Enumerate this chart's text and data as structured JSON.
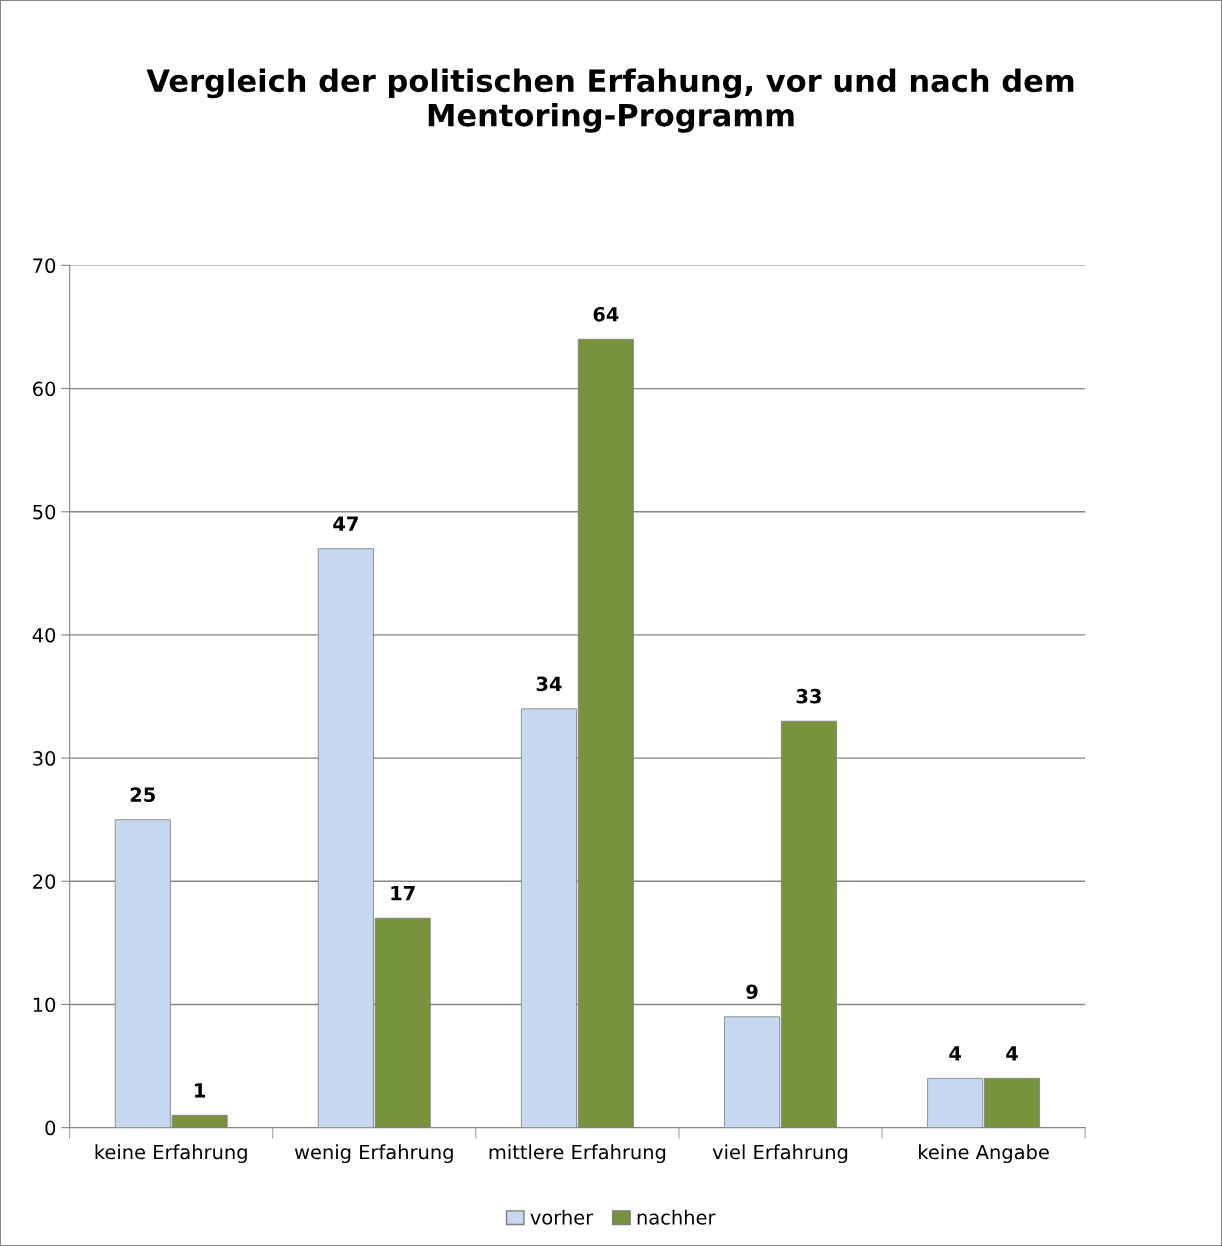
{
  "chart_data": {
    "type": "bar",
    "title": "Vergleich der politischen Erfahung, vor und nach dem\nMentoring-Programm",
    "categories": [
      "keine Erfahrung",
      "wenig Erfahrung",
      "mittlere Erfahrung",
      "viel Erfahrung",
      "keine Angabe"
    ],
    "series": [
      {
        "name": "vorher",
        "color": "#c6d9f1",
        "values": [
          25,
          47,
          34,
          9,
          4
        ]
      },
      {
        "name": "nachher",
        "color": "#77933c",
        "values": [
          1,
          17,
          64,
          33,
          4
        ]
      }
    ],
    "ylim": [
      0,
      70
    ],
    "yticks": [
      0,
      10,
      20,
      30,
      40,
      50,
      60,
      70
    ],
    "grid": "y",
    "legend": "bottom",
    "data_labels": true
  }
}
